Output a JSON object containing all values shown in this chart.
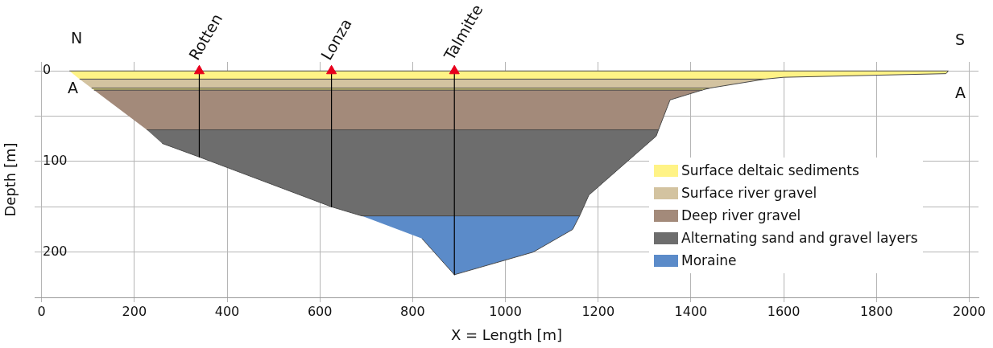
{
  "chart_data": {
    "type": "area",
    "xlabel": "X = Length [m]",
    "ylabel": "Depth [m]",
    "xlim": [
      -15,
      2020
    ],
    "ylim": [
      250,
      -10
    ],
    "xticks": [
      0,
      200,
      400,
      600,
      800,
      1000,
      1200,
      1400,
      1600,
      1800,
      2000
    ],
    "yticks": [
      0,
      {
        "value": 50,
        "label": null
      },
      100,
      {
        "value": 150,
        "label": null
      },
      200
    ],
    "grid": true,
    "legend": "bottom right",
    "annotations": [
      "N",
      "S",
      "A",
      "A",
      {
        "text": "Rotten",
        "x": 340,
        "y": 0
      },
      {
        "text": "Lonza",
        "x": 625,
        "y": 0
      },
      {
        "text": "Talmitte",
        "x": 890,
        "y": 0
      }
    ],
    "series": [
      {
        "name": "Surface deltaic sediments",
        "color": "#fff386",
        "x": [
          60,
          1955,
          1950,
          1600,
          1560,
          82
        ],
        "values": [
          0,
          0,
          3,
          7,
          9,
          9
        ]
      },
      {
        "name": "Surface river gravel",
        "color": "#d3c3a0",
        "x": [
          82,
          1560,
          1440,
          108
        ],
        "values": [
          9,
          9,
          19,
          19
        ]
      },
      {
        "color": "#fff386",
        "x": [
          108,
          1440,
          1425,
          113
        ],
        "values": [
          19,
          19,
          21,
          21
        ]
      },
      {
        "name": "Deep river gravel",
        "color": "#a38a7a",
        "x": [
          113,
          1425,
          1355,
          1330,
          227
        ],
        "values": [
          21,
          21,
          32,
          65,
          65
        ]
      },
      {
        "name": "Alternating sand and gravel layers",
        "color": "#6d6d6d",
        "x": [
          227,
          1330,
          1325,
          1180,
          1160,
          690,
          625,
          340,
          260
        ],
        "values": [
          65,
          65,
          72,
          137,
          160,
          160,
          150,
          95,
          80
        ]
      },
      {
        "name": "Moraine",
        "color": "#5b8bc9",
        "x": [
          690,
          1160,
          1145,
          1060,
          890,
          820
        ],
        "values": [
          160,
          160,
          175,
          200,
          225,
          185
        ]
      },
      {
        "type": "line",
        "color": "#000000",
        "x": [
          340,
          340
        ],
        "values": [
          0,
          95
        ]
      },
      {
        "type": "line",
        "color": "#000000",
        "x": [
          625,
          625
        ],
        "values": [
          0,
          150
        ]
      },
      {
        "type": "line",
        "color": "#000000",
        "x": [
          890,
          890
        ],
        "values": [
          0,
          225
        ]
      },
      {
        "type": "scatter",
        "marker": "triangle",
        "color": "#e8001c",
        "x": [
          340,
          625,
          890
        ],
        "values": [
          0,
          0,
          0
        ]
      }
    ]
  }
}
